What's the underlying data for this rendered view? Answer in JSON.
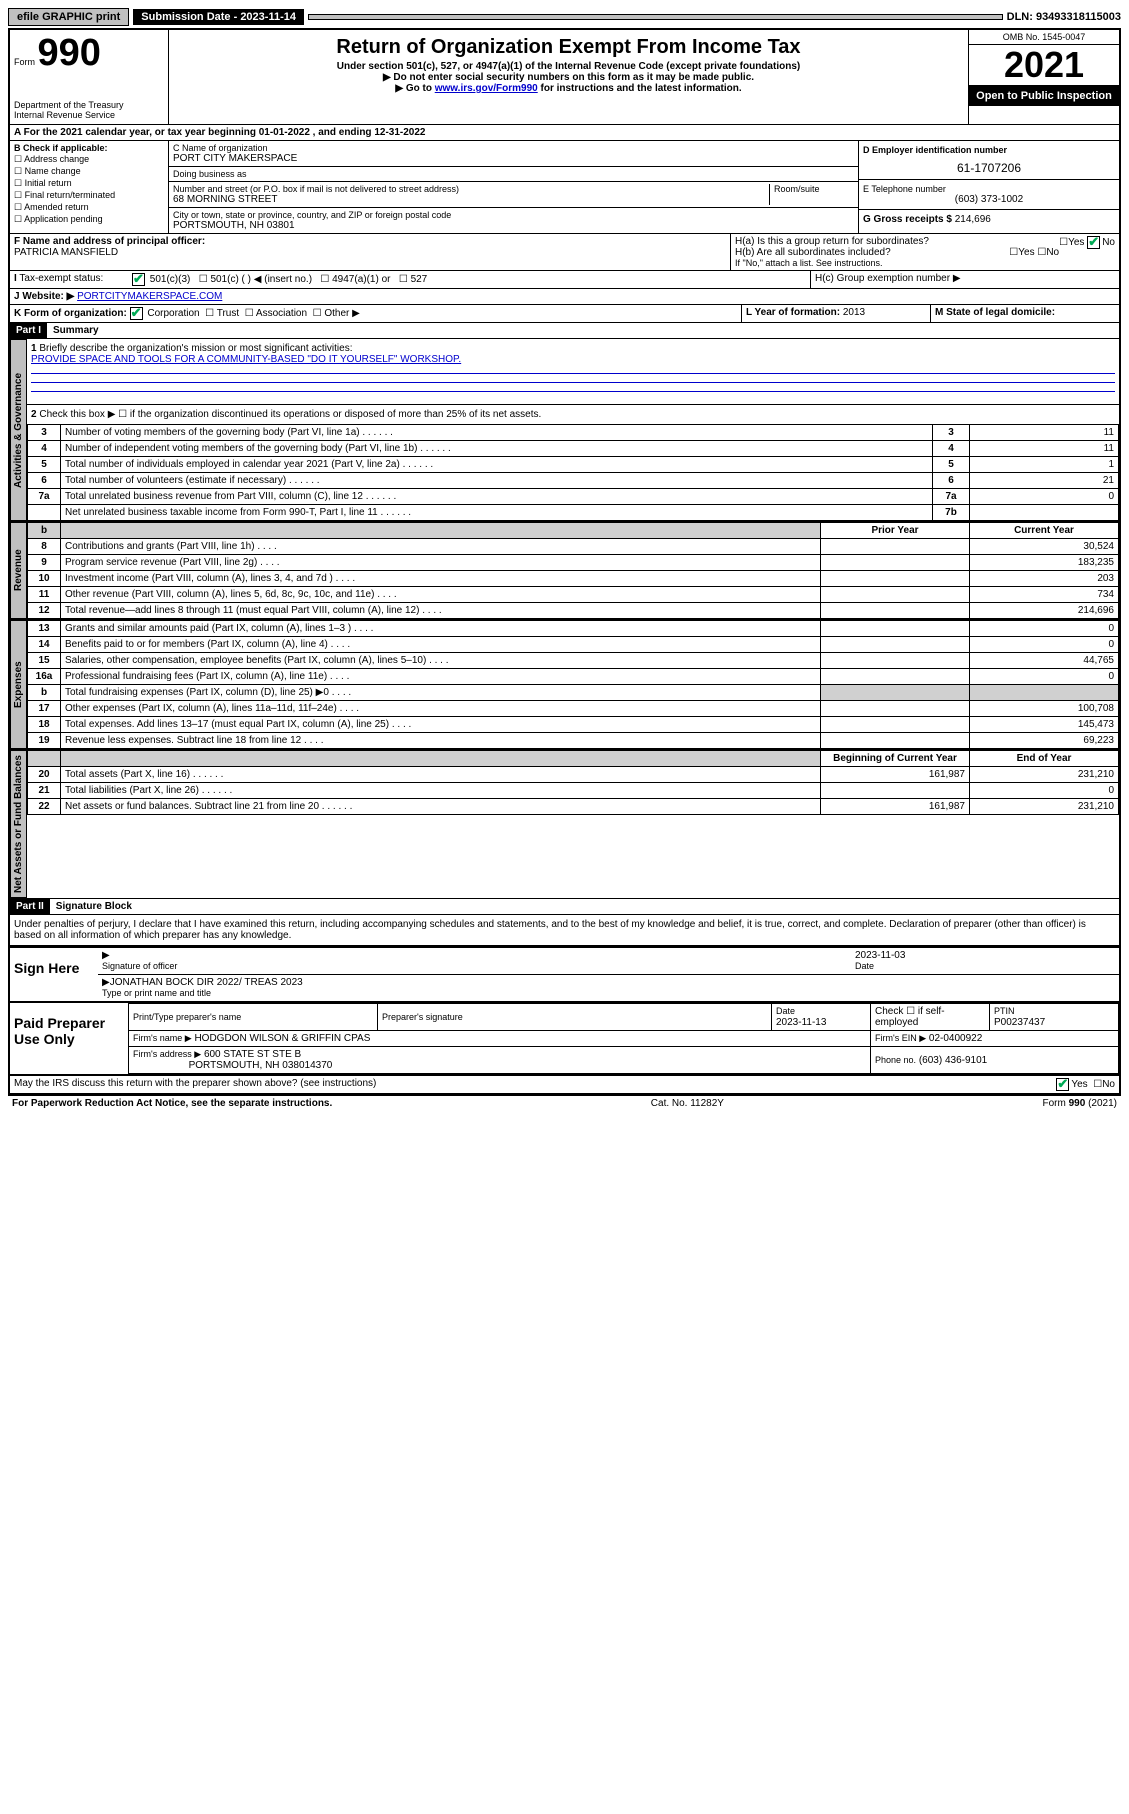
{
  "topbar": {
    "efile": "efile GRAPHIC print",
    "subdate_label": "Submission Date - 2023-11-14",
    "dln": "DLN: 93493318115003"
  },
  "header": {
    "form_word": "Form",
    "form_no": "990",
    "dept": "Department of the Treasury",
    "irs": "Internal Revenue Service",
    "title": "Return of Organization Exempt From Income Tax",
    "sub1": "Under section 501(c), 527, or 4947(a)(1) of the Internal Revenue Code (except private foundations)",
    "sub2": "▶ Do not enter social security numbers on this form as it may be made public.",
    "sub3_pre": "▶ Go to ",
    "sub3_link": "www.irs.gov/Form990",
    "sub3_post": " for instructions and the latest information.",
    "omb": "OMB No. 1545-0047",
    "year": "2021",
    "open": "Open to Public Inspection"
  },
  "rowA": "A For the 2021 calendar year, or tax year beginning 01-01-2022    , and ending 12-31-2022",
  "colB": {
    "label": "B Check if applicable:",
    "opts": [
      "Address change",
      "Name change",
      "Initial return",
      "Final return/terminated",
      "Amended return",
      "Application pending"
    ]
  },
  "colC": {
    "name_label": "C Name of organization",
    "name": "PORT CITY MAKERSPACE",
    "dba_label": "Doing business as",
    "addr_label": "Number and street (or P.O. box if mail is not delivered to street address)",
    "room_label": "Room/suite",
    "addr": "68 MORNING STREET",
    "city_label": "City or town, state or province, country, and ZIP or foreign postal code",
    "city": "PORTSMOUTH, NH  03801"
  },
  "colD": {
    "ein_label": "D Employer identification number",
    "ein": "61-1707206",
    "tel_label": "E Telephone number",
    "tel": "(603) 373-1002",
    "gross_label": "G Gross receipts $",
    "gross": "214,696"
  },
  "rowF": {
    "label": "F  Name and address of principal officer:",
    "name": "PATRICIA MANSFIELD"
  },
  "rowH": {
    "ha_label": "H(a)  Is this a group return for subordinates?",
    "hb_label": "H(b)  Are all subordinates included?",
    "hb_note": "If \"No,\" attach a list. See instructions.",
    "hc_label": "H(c)  Group exemption number ▶",
    "yes": "Yes",
    "no": "No"
  },
  "rowI": {
    "label": "Tax-exempt status:",
    "o1": "501(c)(3)",
    "o2": "501(c) (   ) ◀ (insert no.)",
    "o3": "4947(a)(1) or",
    "o4": "527"
  },
  "rowJ": {
    "label": "Website: ▶",
    "val": "PORTCITYMAKERSPACE.COM"
  },
  "rowK": {
    "label": "K Form of organization:",
    "o1": "Corporation",
    "o2": "Trust",
    "o3": "Association",
    "o4": "Other ▶"
  },
  "rowL": {
    "label": "L Year of formation:",
    "val": "2013"
  },
  "rowM": {
    "label": "M State of legal domicile:"
  },
  "partI": {
    "hdr": "Part I",
    "title": "Summary",
    "side_act": "Activities & Governance",
    "side_rev": "Revenue",
    "side_exp": "Expenses",
    "side_net": "Net Assets or Fund Balances",
    "l1": "Briefly describe the organization's mission or most significant activities:",
    "l1v": "PROVIDE SPACE AND TOOLS FOR A COMMUNITY-BASED \"DO IT YOURSELF\" WORKSHOP.",
    "l2": "Check this box ▶ ☐  if the organization discontinued its operations or disposed of more than 25% of its net assets.",
    "lines_gov": [
      {
        "n": "3",
        "t": "Number of voting members of the governing body (Part VI, line 1a)",
        "b": "3",
        "v": "11"
      },
      {
        "n": "4",
        "t": "Number of independent voting members of the governing body (Part VI, line 1b)",
        "b": "4",
        "v": "11"
      },
      {
        "n": "5",
        "t": "Total number of individuals employed in calendar year 2021 (Part V, line 2a)",
        "b": "5",
        "v": "1"
      },
      {
        "n": "6",
        "t": "Total number of volunteers (estimate if necessary)",
        "b": "6",
        "v": "21"
      },
      {
        "n": "7a",
        "t": "Total unrelated business revenue from Part VIII, column (C), line 12",
        "b": "7a",
        "v": "0"
      },
      {
        "n": "",
        "t": "Net unrelated business taxable income from Form 990-T, Part I, line 11",
        "b": "7b",
        "v": ""
      }
    ],
    "hdr_prior": "Prior Year",
    "hdr_curr": "Current Year",
    "lines_rev": [
      {
        "n": "8",
        "t": "Contributions and grants (Part VIII, line 1h)",
        "p": "",
        "c": "30,524"
      },
      {
        "n": "9",
        "t": "Program service revenue (Part VIII, line 2g)",
        "p": "",
        "c": "183,235"
      },
      {
        "n": "10",
        "t": "Investment income (Part VIII, column (A), lines 3, 4, and 7d )",
        "p": "",
        "c": "203"
      },
      {
        "n": "11",
        "t": "Other revenue (Part VIII, column (A), lines 5, 6d, 8c, 9c, 10c, and 11e)",
        "p": "",
        "c": "734"
      },
      {
        "n": "12",
        "t": "Total revenue—add lines 8 through 11 (must equal Part VIII, column (A), line 12)",
        "p": "",
        "c": "214,696"
      }
    ],
    "lines_exp": [
      {
        "n": "13",
        "t": "Grants and similar amounts paid (Part IX, column (A), lines 1–3 )",
        "p": "",
        "c": "0"
      },
      {
        "n": "14",
        "t": "Benefits paid to or for members (Part IX, column (A), line 4)",
        "p": "",
        "c": "0"
      },
      {
        "n": "15",
        "t": "Salaries, other compensation, employee benefits (Part IX, column (A), lines 5–10)",
        "p": "",
        "c": "44,765"
      },
      {
        "n": "16a",
        "t": "Professional fundraising fees (Part IX, column (A), line 11e)",
        "p": "",
        "c": "0"
      },
      {
        "n": "b",
        "t": "Total fundraising expenses (Part IX, column (D), line 25) ▶0",
        "p": "shade",
        "c": "shade"
      },
      {
        "n": "17",
        "t": "Other expenses (Part IX, column (A), lines 11a–11d, 11f–24e)",
        "p": "",
        "c": "100,708"
      },
      {
        "n": "18",
        "t": "Total expenses. Add lines 13–17 (must equal Part IX, column (A), line 25)",
        "p": "",
        "c": "145,473"
      },
      {
        "n": "19",
        "t": "Revenue less expenses. Subtract line 18 from line 12",
        "p": "",
        "c": "69,223"
      }
    ],
    "hdr_beg": "Beginning of Current Year",
    "hdr_end": "End of Year",
    "lines_net": [
      {
        "n": "20",
        "t": "Total assets (Part X, line 16)",
        "p": "161,987",
        "c": "231,210"
      },
      {
        "n": "21",
        "t": "Total liabilities (Part X, line 26)",
        "p": "",
        "c": "0"
      },
      {
        "n": "22",
        "t": "Net assets or fund balances. Subtract line 21 from line 20",
        "p": "161,987",
        "c": "231,210"
      }
    ]
  },
  "partII": {
    "hdr": "Part II",
    "title": "Signature Block",
    "decl": "Under penalties of perjury, I declare that I have examined this return, including accompanying schedules and statements, and to the best of my knowledge and belief, it is true, correct, and complete. Declaration of preparer (other than officer) is based on all information of which preparer has any knowledge."
  },
  "sign": {
    "here": "Sign Here",
    "sig_label": "Signature of officer",
    "date_label": "Date",
    "date": "2023-11-03",
    "name": "JONATHAN BOCK DIR 2022/ TREAS 2023",
    "name_label": "Type or print name and title"
  },
  "paid": {
    "title": "Paid Preparer Use Only",
    "prep_name_label": "Print/Type preparer's name",
    "prep_sig_label": "Preparer's signature",
    "date_label": "Date",
    "date": "2023-11-13",
    "check_label": "Check ☐ if self-employed",
    "ptin_label": "PTIN",
    "ptin": "P00237437",
    "firm_name_label": "Firm's name    ▶",
    "firm_name": "HODGDON WILSON & GRIFFIN CPAS",
    "firm_ein_label": "Firm's EIN ▶",
    "firm_ein": "02-0400922",
    "firm_addr_label": "Firm's address ▶",
    "firm_addr1": "600 STATE ST STE B",
    "firm_addr2": "PORTSMOUTH, NH  038014370",
    "phone_label": "Phone no.",
    "phone": "(603) 436-9101"
  },
  "footer": {
    "q": "May the IRS discuss this return with the preparer shown above? (see instructions)",
    "yes": "Yes",
    "no": "No",
    "pra": "For Paperwork Reduction Act Notice, see the separate instructions.",
    "cat": "Cat. No. 11282Y",
    "form": "Form 990 (2021)"
  }
}
